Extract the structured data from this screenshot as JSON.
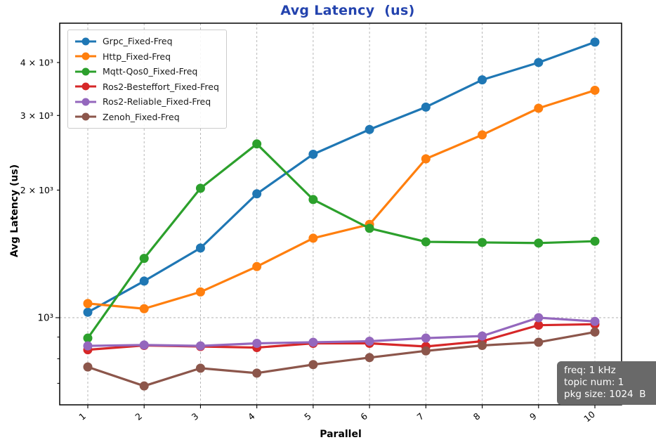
{
  "title": "Avg Latency  (us)",
  "title_color": "#2343ae",
  "annotation": {
    "bg_color": "#696969",
    "text_color": "#ffffff",
    "lines": [
      "freq: 1 kHz",
      "topic num: 1",
      "pkg size: 1024  B"
    ]
  },
  "chart_data": {
    "type": "line",
    "title": "Avg Latency  (us)",
    "xlabel": "Parallel",
    "ylabel": "Avg Latency (us)",
    "y_scale": "log",
    "ylim": [
      620,
      4930
    ],
    "xlim": [
      0.5,
      10.47
    ],
    "grid": "dashed, vertical at every x tick, horizontal at 1000 only",
    "legend_position": "upper-left",
    "x": [
      1,
      2,
      3,
      4,
      5,
      6,
      7,
      8,
      9,
      10
    ],
    "x_tick_labels": [
      "1",
      "2",
      "3",
      "4",
      "5",
      "6",
      "7",
      "8",
      "9",
      "10"
    ],
    "y_ticks": [
      {
        "value": 1000,
        "label": "10³",
        "major": true
      },
      {
        "value": 2000,
        "label": "2 × 10³",
        "major": false
      },
      {
        "value": 3000,
        "label": "3 × 10³",
        "major": false
      },
      {
        "value": 4000,
        "label": "4 × 10³",
        "major": false
      }
    ],
    "y_minor_ticks": [
      900,
      800,
      700
    ],
    "series": [
      {
        "label": "Grpc_Fixed-Freq",
        "color": "#1f77b4",
        "values": [
          1030,
          1220,
          1460,
          1960,
          2430,
          2780,
          3140,
          3640,
          4000,
          4470
        ]
      },
      {
        "label": "Http_Fixed-Freq",
        "color": "#ff7f0e",
        "values": [
          1080,
          1050,
          1150,
          1320,
          1540,
          1660,
          2370,
          2700,
          3120,
          3440
        ]
      },
      {
        "label": "Mqtt-Qos0_Fixed-Freq",
        "color": "#2ca02c",
        "values": [
          895,
          1380,
          2020,
          2570,
          1900,
          1625,
          1510,
          1505,
          1500,
          1515
        ]
      },
      {
        "label": "Ros2-Besteffort_Fixed-Freq",
        "color": "#d62728",
        "values": [
          840,
          860,
          855,
          850,
          870,
          870,
          855,
          880,
          960,
          965
        ]
      },
      {
        "label": "Ros2-Reliable_Fixed-Freq",
        "color": "#9467bd",
        "values": [
          858,
          862,
          858,
          870,
          875,
          880,
          895,
          905,
          1000,
          980
        ]
      },
      {
        "label": "Zenoh_Fixed-Freq",
        "color": "#8c564b",
        "values": [
          765,
          690,
          760,
          740,
          775,
          805,
          835,
          860,
          875,
          925
        ]
      }
    ]
  }
}
